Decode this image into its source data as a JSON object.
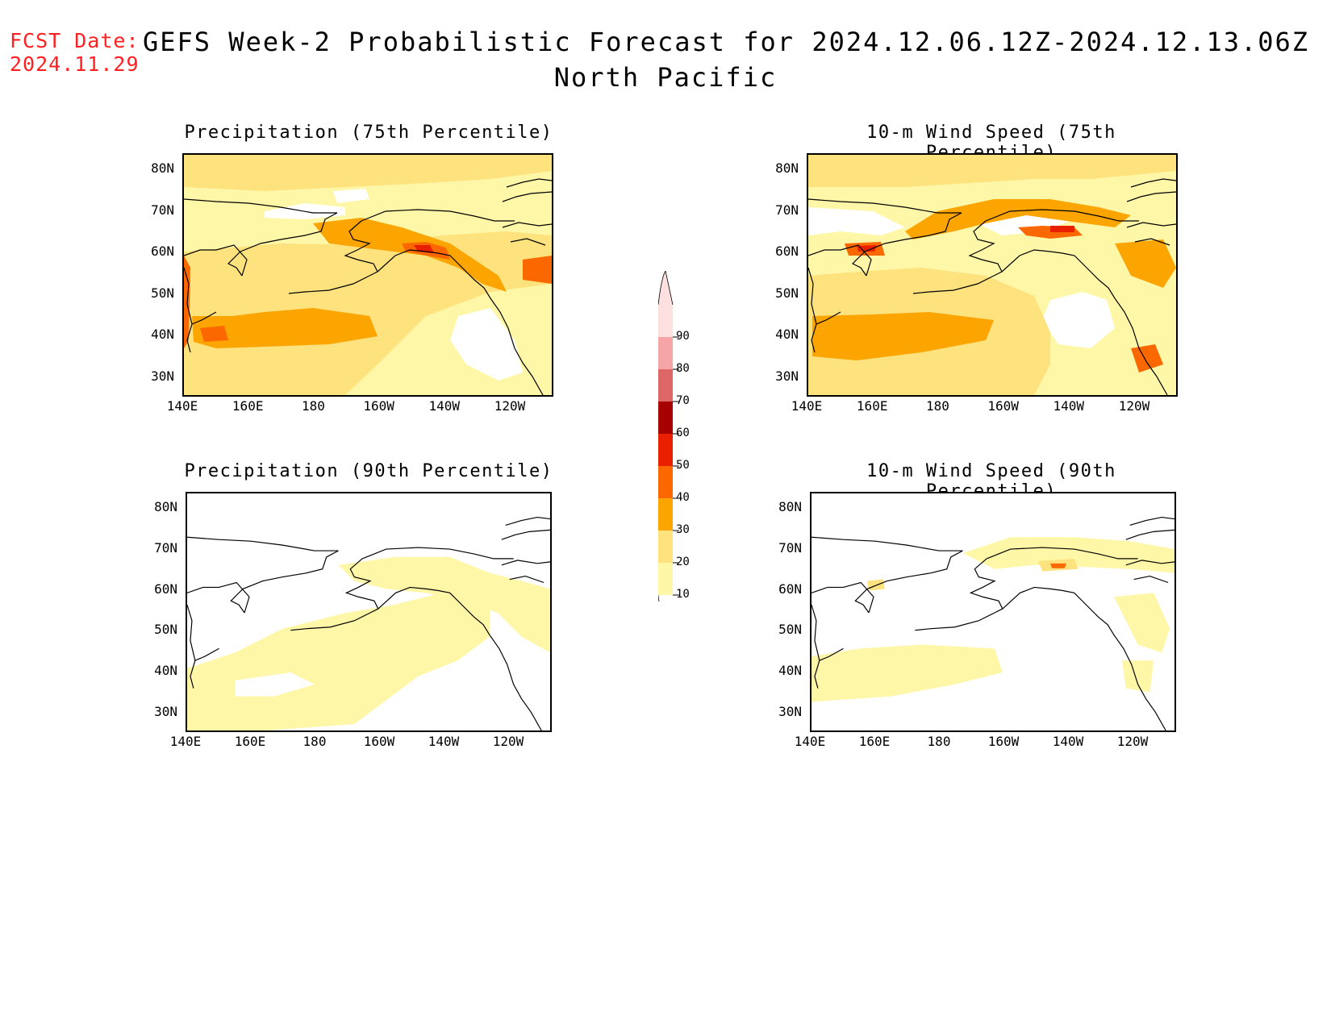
{
  "header": {
    "fcst_label": "FCST Date:",
    "fcst_date": "2024.11.29",
    "title": "GEFS Week-2 Probabilistic Forecast for 2024.12.06.12Z-2024.12.13.06Z",
    "subtitle": "North Pacific"
  },
  "colors": {
    "c10": "#fff7a8",
    "c20": "#fde27d",
    "c30": "#fca400",
    "c40": "#fc6800",
    "c50": "#e82000",
    "c60": "#a60000",
    "c70": "#dd6666",
    "c80": "#f5a5a5",
    "c90": "#ffe0e0",
    "coast": "#000000"
  },
  "colorbar": {
    "levels": [
      "10",
      "20",
      "30",
      "40",
      "50",
      "60",
      "70",
      "80",
      "90"
    ]
  },
  "axes": {
    "lat_labels": [
      "80N",
      "70N",
      "60N",
      "50N",
      "40N",
      "30N"
    ],
    "lon_labels": [
      "140E",
      "160E",
      "180",
      "160W",
      "140W",
      "120W"
    ]
  },
  "panels": [
    {
      "id": "precip75",
      "title": "Precipitation (75th Percentile)"
    },
    {
      "id": "wind75",
      "title": "10-m Wind Speed (75th Percentile)"
    },
    {
      "id": "precip90",
      "title": "Precipitation (90th Percentile)"
    },
    {
      "id": "wind90",
      "title": "10-m Wind Speed (90th Percentile)"
    }
  ]
}
